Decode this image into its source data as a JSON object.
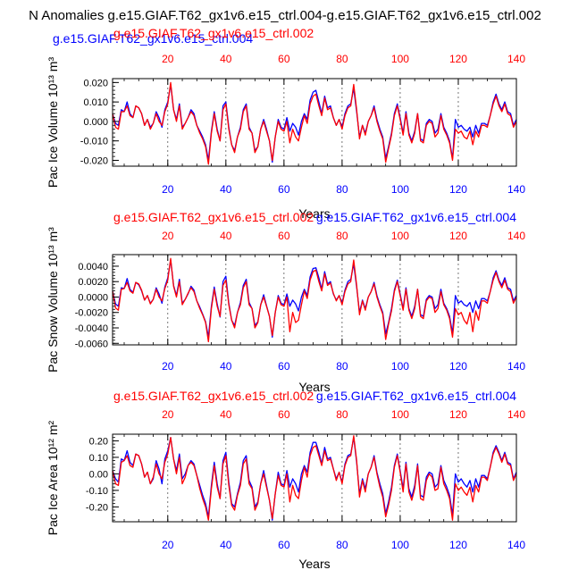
{
  "figure": {
    "title": "N Anomalies g.e15.GIAF.T62_gx1v6.e15_ctrl.004-g.e15.GIAF.T62_gx1v6.e15_ctrl.002"
  },
  "colors": {
    "blue": "#0000ff",
    "red": "#ff0000",
    "axis": "#000000",
    "grid": "#555555"
  },
  "chart_data": [
    {
      "type": "line",
      "name": "pac-ice-volume",
      "title": "",
      "top_blue_title": "g.e15.GIAF.T62_gx1v6.e15_ctrl.004",
      "top_red_title": "g.e15.GIAF.T62_gx1v6.e15_ctrl.002",
      "xlabel": "Years",
      "ylabel": "Pac Ice Volume 10¹³ m³",
      "xlim": [
        1,
        140
      ],
      "ylim": [
        -0.023,
        0.022
      ],
      "xticks": [
        20,
        40,
        60,
        80,
        100,
        120,
        140
      ],
      "yticks": [
        -0.02,
        -0.01,
        0.0,
        0.01,
        0.02
      ],
      "ytick_labels": [
        "-0.020",
        "-0.010",
        "0.000",
        "0.010",
        "0.020"
      ],
      "vlines": [
        20,
        40,
        60,
        80,
        100,
        120
      ],
      "series": [
        {
          "name": "g.e15.GIAF.T62_gx1v6.e15_ctrl.004",
          "color": "blue",
          "values": [
            0.004,
            -0.001,
            -0.002,
            0.006,
            0.005,
            0.01,
            0.004,
            0.002,
            0.008,
            0.007,
            0.004,
            -0.002,
            0.001,
            -0.003,
            -0.001,
            0.005,
            0.002,
            -0.003,
            0.006,
            0.01,
            0.019,
            0.006,
            0.001,
            0.009,
            -0.003,
            -0.001,
            0.002,
            0.006,
            0.004,
            -0.002,
            -0.005,
            -0.008,
            -0.012,
            -0.02,
            -0.005,
            0.005,
            -0.004,
            -0.01,
            0.008,
            0.01,
            -0.003,
            -0.012,
            -0.015,
            -0.008,
            -0.003,
            0.006,
            0.009,
            -0.003,
            -0.006,
            -0.015,
            -0.013,
            -0.004,
            0.001,
            -0.004,
            -0.01,
            -0.021,
            -0.008,
            0.001,
            -0.003,
            -0.004,
            0.002,
            -0.005,
            -0.001,
            -0.003,
            -0.007,
            0.0,
            0.004,
            0.001,
            0.011,
            0.015,
            0.016,
            0.01,
            0.004,
            0.013,
            0.007,
            0.008,
            0.002,
            -0.002,
            0.001,
            -0.003,
            0.004,
            0.008,
            0.009,
            0.017,
            0.005,
            -0.008,
            -0.002,
            -0.006,
            0.0,
            0.003,
            0.008,
            0.001,
            -0.004,
            -0.008,
            -0.019,
            -0.013,
            -0.006,
            0.004,
            0.009,
            0.002,
            -0.006,
            0.005,
            -0.006,
            -0.01,
            -0.005,
            0.004,
            -0.009,
            -0.01,
            -0.001,
            0.001,
            0.0,
            -0.006,
            -0.004,
            0.004,
            -0.003,
            -0.006,
            -0.01,
            -0.019,
            0.001,
            -0.003,
            -0.002,
            -0.004,
            -0.005,
            -0.003,
            -0.008,
            -0.002,
            -0.006,
            -0.001,
            -0.001,
            -0.002,
            0.003,
            0.01,
            0.014,
            0.009,
            0.006,
            0.01,
            0.005,
            0.004,
            -0.002,
            0.001
          ]
        },
        {
          "name": "g.e15.GIAF.T62_gx1v6.e15_ctrl.002",
          "color": "red",
          "values": [
            0.004,
            -0.003,
            -0.004,
            0.005,
            0.005,
            0.008,
            0.003,
            0.002,
            0.008,
            0.007,
            0.004,
            -0.002,
            0.001,
            -0.004,
            -0.001,
            0.004,
            0.0,
            -0.002,
            0.005,
            0.009,
            0.02,
            0.006,
            0.0,
            0.008,
            -0.004,
            -0.001,
            0.002,
            0.005,
            0.003,
            -0.002,
            -0.006,
            -0.009,
            -0.013,
            -0.022,
            -0.006,
            0.004,
            -0.005,
            -0.01,
            0.006,
            0.009,
            -0.004,
            -0.012,
            -0.016,
            -0.008,
            -0.004,
            0.005,
            0.008,
            -0.004,
            -0.006,
            -0.016,
            -0.013,
            -0.004,
            0.0,
            -0.005,
            -0.01,
            -0.02,
            -0.008,
            0.0,
            -0.004,
            -0.005,
            0.0,
            -0.011,
            -0.004,
            -0.008,
            -0.01,
            -0.003,
            0.003,
            -0.001,
            0.009,
            0.013,
            0.014,
            0.008,
            0.003,
            0.012,
            0.006,
            0.007,
            0.002,
            -0.002,
            0.001,
            -0.004,
            0.003,
            0.007,
            0.008,
            0.019,
            0.006,
            -0.009,
            -0.002,
            -0.007,
            0.0,
            0.003,
            0.007,
            0.0,
            -0.005,
            -0.009,
            -0.021,
            -0.014,
            -0.007,
            0.003,
            0.008,
            0.001,
            -0.007,
            0.004,
            -0.007,
            -0.011,
            -0.006,
            0.004,
            -0.01,
            -0.011,
            -0.002,
            0.0,
            -0.001,
            -0.008,
            -0.006,
            0.003,
            -0.004,
            -0.007,
            -0.011,
            -0.02,
            -0.004,
            -0.006,
            -0.005,
            -0.008,
            -0.009,
            -0.005,
            -0.012,
            -0.005,
            -0.008,
            -0.002,
            -0.002,
            -0.003,
            0.003,
            0.009,
            0.013,
            0.008,
            0.005,
            0.009,
            0.004,
            0.003,
            -0.003,
            0.0
          ]
        }
      ]
    },
    {
      "type": "line",
      "name": "pac-snow-volume",
      "title": "",
      "top_blue_title": "g.e15.GIAF.T62_gx1v6.e15_ctrl.004",
      "top_red_title": "g.e15.GIAF.T62_gx1v6.e15_ctrl.002",
      "xlabel": "Years",
      "ylabel": "Pac Snow Volume 10¹³ m³",
      "xlim": [
        1,
        140
      ],
      "ylim": [
        -0.0062,
        0.0055
      ],
      "xticks": [
        20,
        40,
        60,
        80,
        100,
        120,
        140
      ],
      "yticks": [
        -0.006,
        -0.004,
        -0.002,
        0.0,
        0.002,
        0.004
      ],
      "ytick_labels": [
        "-0.0060",
        "-0.0040",
        "-0.0020",
        "0.0000",
        "0.0020",
        "0.0040"
      ],
      "vlines": [
        20,
        40,
        60,
        80,
        100,
        120
      ],
      "series": [
        {
          "name": "g.e15.GIAF.T62_gx1v6.e15_ctrl.004",
          "color": "blue",
          "values": [
            0.0008,
            -0.0009,
            -0.0012,
            0.0012,
            0.0011,
            0.0024,
            0.001,
            0.0006,
            0.0019,
            0.0016,
            0.0008,
            -0.0004,
            0.0002,
            -0.0008,
            -0.0003,
            0.0012,
            0.0004,
            -0.0008,
            0.0013,
            0.0025,
            0.0048,
            0.0015,
            0.0002,
            0.0023,
            -0.0008,
            -0.0003,
            0.0004,
            0.0014,
            0.0009,
            -0.0005,
            -0.0013,
            -0.0022,
            -0.0032,
            -0.0052,
            -0.0012,
            0.0013,
            -0.0009,
            -0.0026,
            0.002,
            0.0027,
            -0.0008,
            -0.003,
            -0.0037,
            -0.002,
            -0.0007,
            0.0015,
            0.0023,
            -0.0007,
            -0.0015,
            -0.0037,
            -0.0032,
            -0.001,
            0.0003,
            -0.0011,
            -0.0025,
            -0.0052,
            -0.002,
            0.0002,
            -0.0008,
            -0.001,
            0.0004,
            -0.0012,
            -0.0004,
            -0.0009,
            -0.0018,
            0.0,
            0.001,
            0.0002,
            0.0026,
            0.0037,
            0.0038,
            0.0025,
            0.001,
            0.0033,
            0.0017,
            0.002,
            0.0004,
            -0.0004,
            0.0002,
            -0.0008,
            0.0009,
            0.002,
            0.0023,
            0.0043,
            0.0013,
            -0.002,
            -0.0004,
            -0.0015,
            0.0,
            0.0007,
            0.0019,
            0.0002,
            -0.001,
            -0.002,
            -0.0048,
            -0.0033,
            -0.0015,
            0.0009,
            0.0022,
            0.0004,
            -0.0015,
            0.0012,
            -0.0015,
            -0.0025,
            -0.0012,
            0.001,
            -0.0023,
            -0.0025,
            -0.0003,
            0.0002,
            0.0,
            -0.0015,
            -0.001,
            0.001,
            -0.0008,
            -0.0015,
            -0.0025,
            -0.0047,
            0.0002,
            -0.0008,
            -0.0005,
            -0.001,
            -0.0012,
            -0.0007,
            -0.002,
            -0.0005,
            -0.0015,
            -0.0002,
            -0.0002,
            -0.0005,
            0.0007,
            0.0025,
            0.0034,
            0.0022,
            0.0015,
            0.0025,
            0.0012,
            0.001,
            -0.0005,
            0.0002
          ]
        },
        {
          "name": "g.e15.GIAF.T62_gx1v6.e15_ctrl.002",
          "color": "red",
          "values": [
            0.0008,
            -0.0014,
            -0.0017,
            0.001,
            0.0011,
            0.0019,
            0.0008,
            0.0005,
            0.0019,
            0.0017,
            0.0009,
            -0.0004,
            0.0002,
            -0.0009,
            -0.0003,
            0.001,
            0.0,
            -0.0005,
            0.0011,
            0.0022,
            0.005,
            0.0014,
            0.0,
            0.002,
            -0.001,
            -0.0003,
            0.0005,
            0.0012,
            0.0007,
            -0.0005,
            -0.0015,
            -0.0023,
            -0.0033,
            -0.0058,
            -0.0015,
            0.001,
            -0.0012,
            -0.0025,
            0.0015,
            0.0022,
            -0.001,
            -0.003,
            -0.004,
            -0.002,
            -0.001,
            0.0012,
            0.002,
            -0.001,
            -0.0015,
            -0.004,
            -0.0033,
            -0.001,
            0.0,
            -0.0012,
            -0.0025,
            -0.005,
            -0.002,
            0.0,
            -0.001,
            -0.0012,
            0.0,
            -0.0045,
            -0.002,
            -0.0033,
            -0.003,
            -0.001,
            0.0008,
            -0.0002,
            0.0022,
            0.0033,
            0.0035,
            0.002,
            0.0008,
            0.003,
            0.0015,
            0.0018,
            0.0005,
            -0.0005,
            0.0002,
            -0.001,
            0.0007,
            0.0017,
            0.002,
            0.0048,
            0.0015,
            -0.0023,
            -0.0005,
            -0.0017,
            0.0,
            0.0007,
            0.0017,
            0.0,
            -0.0012,
            -0.0022,
            -0.0055,
            -0.0035,
            -0.0018,
            0.0007,
            0.002,
            0.0002,
            -0.0017,
            0.001,
            -0.0017,
            -0.0028,
            -0.0015,
            0.001,
            -0.0025,
            -0.0028,
            -0.0005,
            0.0,
            -0.0002,
            -0.002,
            -0.0015,
            0.0007,
            -0.001,
            -0.0017,
            -0.0028,
            -0.0052,
            -0.0015,
            -0.0023,
            -0.002,
            -0.003,
            -0.0035,
            -0.002,
            -0.0045,
            -0.0018,
            -0.003,
            -0.0005,
            -0.0005,
            -0.0008,
            0.0007,
            0.0022,
            0.0032,
            0.002,
            0.0012,
            0.0022,
            0.001,
            0.0007,
            -0.0008,
            0.0
          ]
        }
      ]
    },
    {
      "type": "line",
      "name": "pac-ice-area",
      "title": "",
      "top_blue_title": "g.e15.GIAF.T62_gx1v6.e15_ctrl.004",
      "top_red_title": "g.e15.GIAF.T62_gx1v6.e15_ctrl.002",
      "xlabel": "Years",
      "ylabel": "Pac Ice Area 10¹² m²",
      "xlim": [
        1,
        140
      ],
      "ylim": [
        -0.29,
        0.24
      ],
      "xticks": [
        20,
        40,
        60,
        80,
        100,
        120,
        140
      ],
      "yticks": [
        -0.2,
        -0.1,
        0.0,
        0.1,
        0.2
      ],
      "ytick_labels": [
        "-0.20",
        "-0.10",
        "0.00",
        "0.10",
        "0.20"
      ],
      "vlines": [
        20,
        40,
        60,
        80,
        100,
        120
      ],
      "series": [
        {
          "name": "g.e15.GIAF.T62_gx1v6.e15_ctrl.004",
          "color": "blue",
          "values": [
            0.02,
            -0.03,
            -0.05,
            0.09,
            0.08,
            0.14,
            0.07,
            0.05,
            0.12,
            0.11,
            0.06,
            -0.02,
            0.01,
            -0.06,
            -0.03,
            0.08,
            0.03,
            -0.06,
            0.09,
            0.14,
            0.22,
            0.09,
            0.02,
            0.12,
            -0.03,
            0.0,
            0.05,
            0.08,
            0.06,
            -0.01,
            -0.07,
            -0.13,
            -0.18,
            -0.26,
            -0.07,
            0.07,
            -0.06,
            -0.15,
            0.08,
            0.13,
            -0.05,
            -0.18,
            -0.2,
            -0.12,
            -0.05,
            0.08,
            0.11,
            -0.04,
            -0.08,
            -0.2,
            -0.17,
            -0.06,
            0.02,
            -0.07,
            -0.16,
            -0.28,
            -0.12,
            0.01,
            -0.06,
            -0.07,
            0.02,
            -0.08,
            -0.03,
            -0.06,
            -0.11,
            0.0,
            0.05,
            0.01,
            0.13,
            0.19,
            0.19,
            0.13,
            0.06,
            0.16,
            0.09,
            0.1,
            0.03,
            -0.03,
            0.01,
            -0.05,
            0.06,
            0.11,
            0.12,
            0.22,
            0.07,
            -0.12,
            -0.03,
            -0.09,
            0.0,
            0.04,
            0.11,
            0.01,
            -0.06,
            -0.12,
            -0.24,
            -0.17,
            -0.08,
            0.05,
            0.12,
            0.02,
            -0.09,
            0.07,
            -0.09,
            -0.14,
            -0.07,
            0.06,
            -0.13,
            -0.14,
            -0.02,
            0.01,
            0.0,
            -0.08,
            -0.06,
            0.05,
            -0.04,
            -0.08,
            -0.13,
            -0.25,
            0.0,
            -0.05,
            -0.03,
            -0.06,
            -0.08,
            -0.04,
            -0.11,
            -0.03,
            -0.08,
            -0.01,
            -0.01,
            -0.03,
            0.04,
            0.13,
            0.17,
            0.13,
            0.08,
            0.13,
            0.07,
            0.06,
            -0.03,
            0.01
          ]
        },
        {
          "name": "g.e15.GIAF.T62_gx1v6.e15_ctrl.002",
          "color": "red",
          "values": [
            0.02,
            -0.06,
            -0.07,
            0.07,
            0.08,
            0.11,
            0.05,
            0.04,
            0.12,
            0.11,
            0.06,
            -0.02,
            0.01,
            -0.06,
            -0.02,
            0.06,
            0.0,
            -0.03,
            0.07,
            0.12,
            0.22,
            0.09,
            0.0,
            0.1,
            -0.06,
            -0.02,
            0.05,
            0.07,
            0.05,
            -0.01,
            -0.09,
            -0.15,
            -0.2,
            -0.28,
            -0.09,
            0.05,
            -0.08,
            -0.15,
            0.06,
            0.11,
            -0.07,
            -0.19,
            -0.22,
            -0.13,
            -0.07,
            0.06,
            0.09,
            -0.06,
            -0.09,
            -0.22,
            -0.18,
            -0.06,
            0.0,
            -0.08,
            -0.16,
            -0.27,
            -0.12,
            -0.01,
            -0.07,
            -0.08,
            0.0,
            -0.17,
            -0.07,
            -0.13,
            -0.15,
            -0.04,
            0.04,
            -0.02,
            0.11,
            0.16,
            0.17,
            0.11,
            0.05,
            0.14,
            0.08,
            0.09,
            0.03,
            -0.04,
            0.01,
            -0.06,
            0.05,
            0.1,
            0.11,
            0.23,
            0.08,
            -0.14,
            -0.04,
            -0.11,
            0.0,
            0.04,
            0.1,
            0.0,
            -0.08,
            -0.14,
            -0.26,
            -0.19,
            -0.1,
            0.04,
            0.11,
            0.01,
            -0.11,
            0.06,
            -0.11,
            -0.16,
            -0.09,
            0.05,
            -0.15,
            -0.16,
            -0.04,
            0.0,
            -0.02,
            -0.1,
            -0.09,
            0.04,
            -0.06,
            -0.1,
            -0.15,
            -0.28,
            -0.06,
            -0.1,
            -0.08,
            -0.11,
            -0.13,
            -0.08,
            -0.17,
            -0.07,
            -0.11,
            -0.02,
            -0.02,
            -0.04,
            0.04,
            0.12,
            0.16,
            0.12,
            0.07,
            0.12,
            0.06,
            0.05,
            -0.04,
            0.0
          ]
        }
      ]
    }
  ]
}
